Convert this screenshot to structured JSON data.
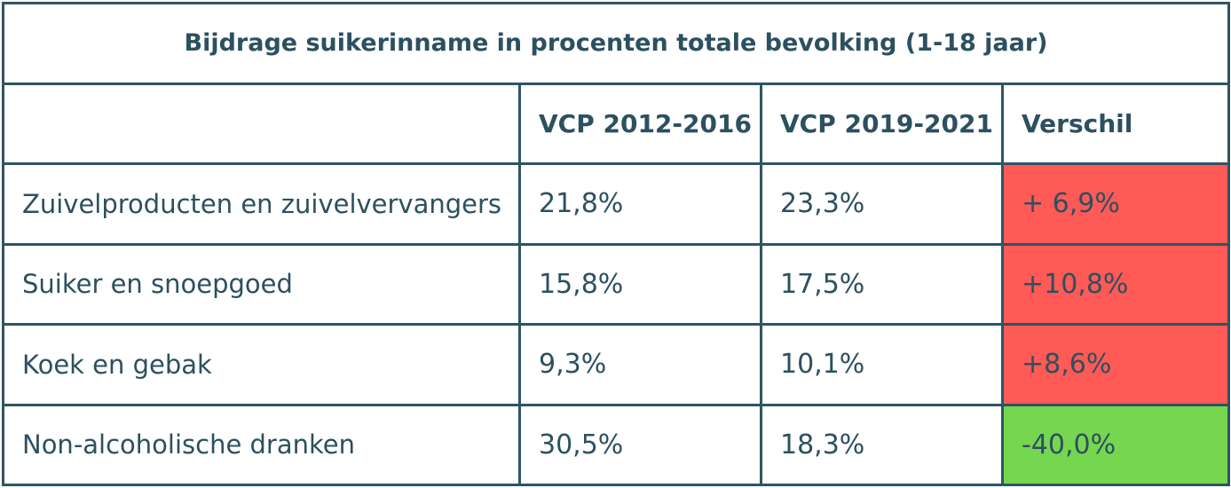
{
  "table": {
    "title": "Bijdrage suikerinname in procenten totale bevolking (1-18 jaar)",
    "headers": [
      "",
      "VCP 2012-2016",
      "VCP 2019-2021",
      "Verschil"
    ],
    "rows": [
      {
        "label": "Zuivelproducten en zuivelvervangers",
        "vcp_2012_2016": "21,8%",
        "vcp_2019_2021": "23,3%",
        "verschil": "+ 6,9%",
        "status": "increase"
      },
      {
        "label": "Suiker en snoepgoed",
        "vcp_2012_2016": "15,8%",
        "vcp_2019_2021": "17,5%",
        "verschil": "+10,8%",
        "status": "increase"
      },
      {
        "label": "Koek en gebak",
        "vcp_2012_2016": "9,3%",
        "vcp_2019_2021": "10,1%",
        "verschil": "+8,6%",
        "status": "increase"
      },
      {
        "label": "Non-alcoholische dranken",
        "vcp_2012_2016": "30,5%",
        "vcp_2019_2021": "18,3%",
        "verschil": "-40,0%",
        "status": "decrease"
      }
    ]
  },
  "colors": {
    "text": "#2c5060",
    "border": "#2e5563",
    "increase": "#ff5a55",
    "decrease": "#77d64f"
  }
}
